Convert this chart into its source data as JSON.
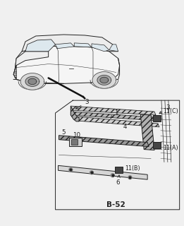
{
  "bg": "#f0f0f0",
  "lc": "#222222",
  "page_label": "B-52",
  "labels": {
    "3a": "3",
    "3b": "3",
    "1": "1",
    "4": "4",
    "5": "5",
    "6": "6",
    "10": "10",
    "11A": "11(A)",
    "11B": "11(B)",
    "11C": "11(C)"
  }
}
